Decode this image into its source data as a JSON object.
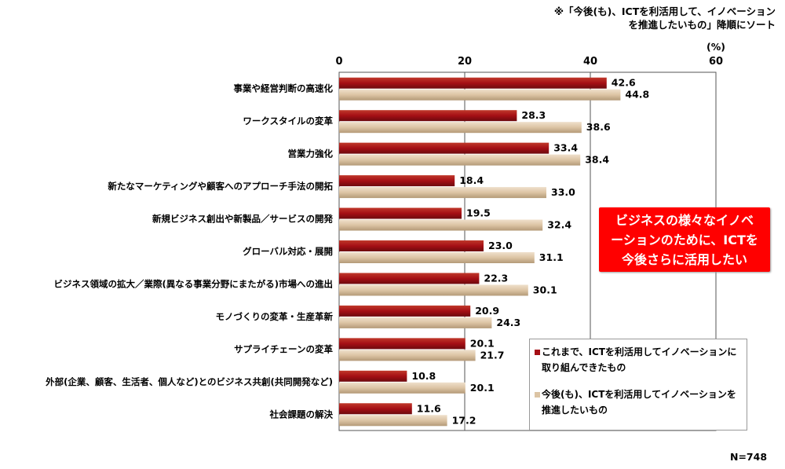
{
  "note": [
    "※「今後(も)、ICTを利活用して、イノベーション",
    "を推進したいもの」降順にソート"
  ],
  "unit": "(%)",
  "callout": [
    "ビジネスの様々なイノベ",
    "ーションのために、ICTを",
    "今後さらに活用したい"
  ],
  "sample_size": "N=748",
  "colors": {
    "series1": "#a50f15",
    "series2": "#dcc4a4"
  },
  "chart_data": {
    "type": "bar",
    "orientation": "horizontal",
    "categories": [
      "事業や経営判断の高速化",
      "ワークスタイルの変革",
      "営業力強化",
      "新たなマーケティングや顧客へのアプローチ手法の開拓",
      "新規ビジネス創出や新製品／サービスの開発",
      "グローバル対応・展開",
      "ビジネス領域の拡大／業際(異なる事業分野にまたがる)市場への進出",
      "モノづくりの変革・生産革新",
      "サプライチェーンの変革",
      "外部(企業、顧客、生活者、個人など)とのビジネス共創(共同開発など)",
      "社会課題の解決"
    ],
    "series": [
      {
        "name": "これまで、ICTを利活用してイノベーションに取り組んできたもの",
        "values": [
          42.6,
          28.3,
          33.4,
          18.4,
          19.5,
          23.0,
          22.3,
          20.9,
          20.1,
          10.8,
          11.6
        ]
      },
      {
        "name": "今後(も)、ICTを利活用してイノベーションを推進したいもの",
        "values": [
          44.8,
          38.6,
          38.4,
          33.0,
          32.4,
          31.1,
          30.1,
          24.3,
          21.7,
          20.1,
          17.2
        ]
      }
    ],
    "xlim": [
      0,
      60
    ],
    "xticks": [
      "0",
      "20",
      "40",
      "60"
    ],
    "xlabel": "(%)",
    "grid": true,
    "legend": "bottom-right"
  }
}
